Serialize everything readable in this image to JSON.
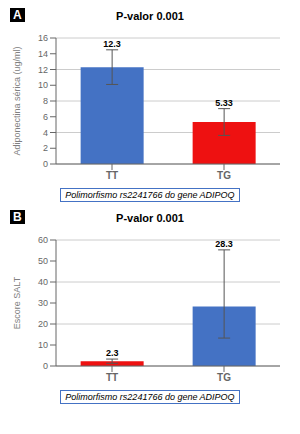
{
  "chart_data": [
    {
      "type": "bar",
      "panel_label": "A",
      "title": "P-valor 0.001",
      "categories": [
        "TT",
        "TG"
      ],
      "values": [
        12.3,
        5.33
      ],
      "errors_up": [
        2.2,
        1.7
      ],
      "errors_down": [
        2.2,
        1.7
      ],
      "colors": [
        "#4472C4",
        "#EE1111"
      ],
      "ylabel": "Adiponectina sérica (ug/ml)",
      "xlabel": "Polimorfismo rs2241766 do gene ADIPOQ",
      "ylim": [
        0,
        16
      ],
      "yticks": [
        0,
        2,
        4,
        6,
        8,
        10,
        12,
        14,
        16
      ],
      "grid": true,
      "data_labels": true
    },
    {
      "type": "bar",
      "panel_label": "B",
      "title": "P-valor 0.001",
      "categories": [
        "TT",
        "TG"
      ],
      "values": [
        2.3,
        28.3
      ],
      "errors_up": [
        1.0,
        27.0
      ],
      "errors_down": [
        1.0,
        15.0
      ],
      "colors": [
        "#EE1111",
        "#4472C4"
      ],
      "ylabel": "Escore SALT",
      "xlabel": "Polimorfismo rs2241766 do gene ADIPOQ",
      "ylim": [
        0,
        60
      ],
      "yticks": [
        0,
        10,
        20,
        30,
        40,
        50,
        60
      ],
      "grid": true,
      "data_labels": true
    }
  ]
}
